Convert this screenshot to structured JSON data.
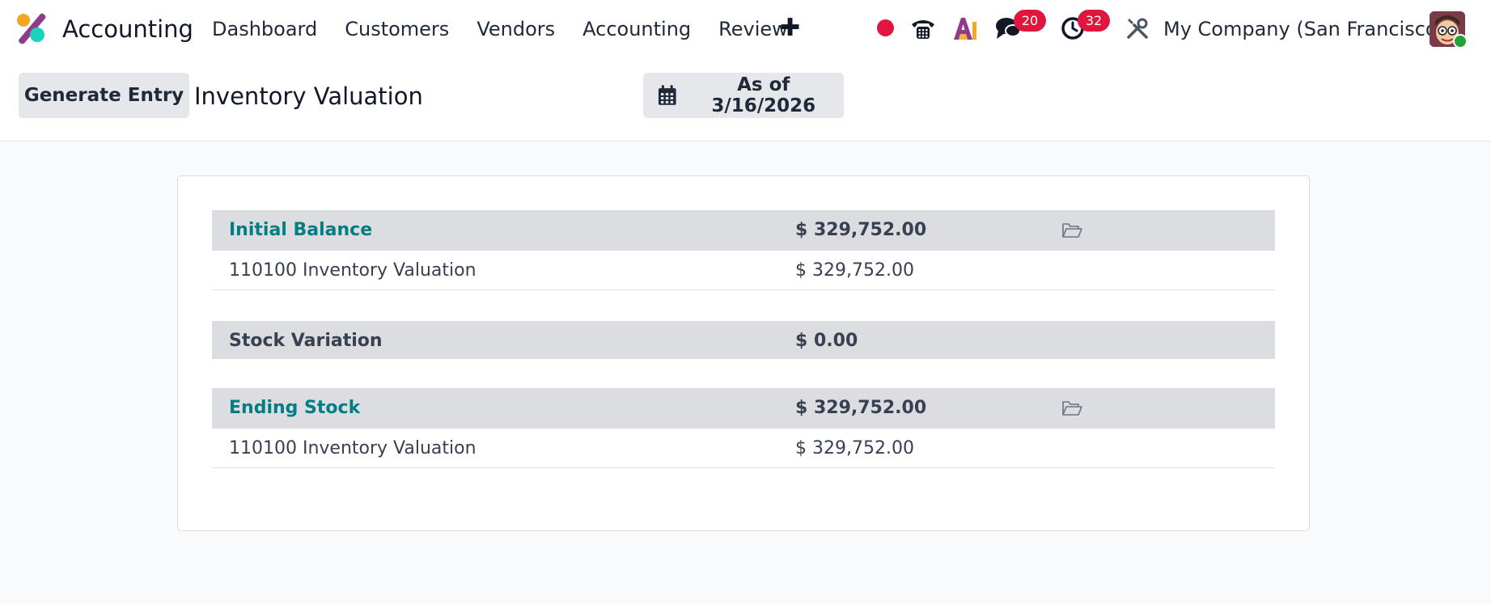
{
  "navbar": {
    "app_name": "Accounting",
    "menu": [
      {
        "label": "Dashboard"
      },
      {
        "label": "Customers"
      },
      {
        "label": "Vendors"
      },
      {
        "label": "Accounting"
      },
      {
        "label": "Review"
      }
    ],
    "plus_label": "✚",
    "messages_count": "20",
    "activities_count": "32",
    "company": "My Company (San Francisco)",
    "record_color": "#e0163f",
    "online_color": "#22a33a"
  },
  "control": {
    "generate_label": "Generate Entry",
    "title": "Inventory Valuation",
    "date_label": "As of 3/16/2026"
  },
  "report": {
    "sections": [
      {
        "label": "Initial Balance",
        "value": "$ 329,752.00",
        "has_folder": true,
        "lines": [
          {
            "label": "110100 Inventory Valuation",
            "value": "$ 329,752.00"
          }
        ]
      },
      {
        "label": "Stock Variation",
        "value": "$ 0.00",
        "has_folder": false,
        "lines": []
      },
      {
        "label": "Ending Stock",
        "value": "$ 329,752.00",
        "has_folder": true,
        "lines": [
          {
            "label": "110100 Inventory Valuation",
            "value": "$ 329,752.00"
          }
        ]
      }
    ]
  },
  "colors": {
    "accent_link": "#017e84",
    "header_row_bg": "#dcdde0",
    "badge": "#e0163f"
  },
  "icons": [
    "app-logo-icon",
    "phone-icon",
    "ai-icon",
    "chat-icon",
    "clock-icon",
    "tools-icon",
    "calendar-icon",
    "folder-open-icon"
  ]
}
